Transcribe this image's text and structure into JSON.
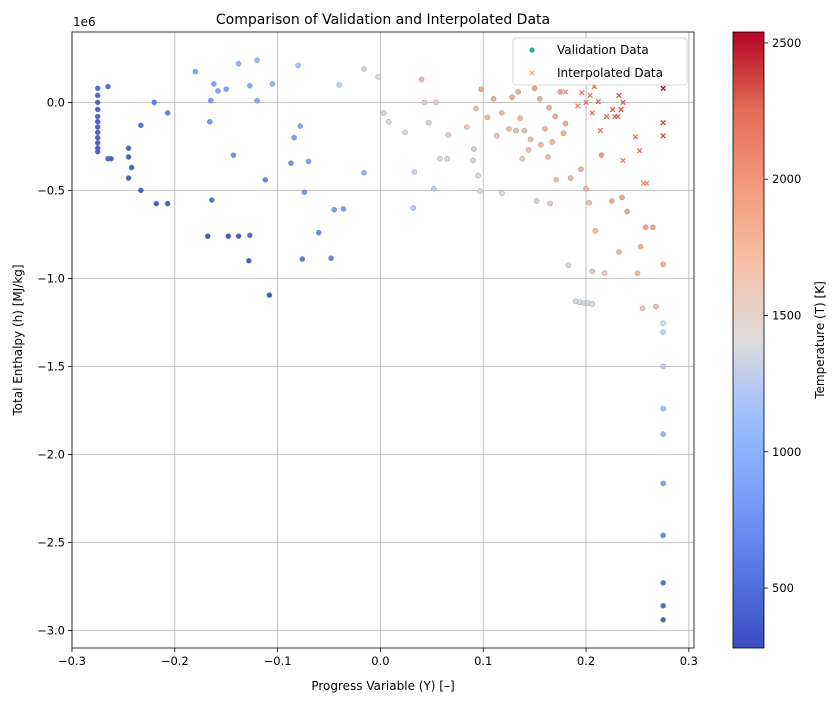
{
  "chart_data": {
    "type": "scatter",
    "title": "Comparison of Validation and Interpolated Data",
    "xlabel": "Progress Variable (Y) [–]",
    "ylabel": "Total Enthalpy (h) [MJ/kg]",
    "y_offset_label": "1e6",
    "xlim": [
      -0.3,
      0.305
    ],
    "ylim": [
      -3100000,
      400000
    ],
    "x_ticks": [
      -0.3,
      -0.2,
      -0.1,
      0.0,
      0.1,
      0.2,
      0.3
    ],
    "x_tick_labels": [
      "−0.3",
      "−0.2",
      "−0.1",
      "0.0",
      "0.1",
      "0.2",
      "0.3"
    ],
    "y_ticks": [
      0,
      -500000,
      -1000000,
      -1500000,
      -2000000,
      -2500000,
      -3000000
    ],
    "y_tick_labels": [
      "0.0",
      "−0.5",
      "−1.0",
      "−1.5",
      "−2.0",
      "−2.5",
      "−3.0"
    ],
    "grid": true,
    "legend_position": "top-right",
    "legend": [
      {
        "label": "Validation Data",
        "marker": "circle",
        "color": "#2cb37a"
      },
      {
        "label": "Interpolated Data",
        "marker": "x",
        "color": "#f4a582"
      }
    ],
    "colorbar": {
      "label": "Temperature (T) [K]",
      "range": [
        280,
        2540
      ],
      "ticks": [
        500,
        1000,
        1500,
        2000,
        2500
      ],
      "tick_labels": [
        "500",
        "1000",
        "1500",
        "2000",
        "2500"
      ],
      "colormap": "coolwarm"
    },
    "series": [
      {
        "name": "Validation Data",
        "marker": "circle",
        "points": [
          {
            "x": -0.275,
            "y": 80000,
            "t": 420
          },
          {
            "x": -0.275,
            "y": 40000,
            "t": 410
          },
          {
            "x": -0.275,
            "y": 0,
            "t": 400
          },
          {
            "x": -0.275,
            "y": -40000,
            "t": 400
          },
          {
            "x": -0.275,
            "y": -80000,
            "t": 390
          },
          {
            "x": -0.275,
            "y": -110000,
            "t": 390
          },
          {
            "x": -0.275,
            "y": -140000,
            "t": 385
          },
          {
            "x": -0.275,
            "y": -170000,
            "t": 380
          },
          {
            "x": -0.275,
            "y": -200000,
            "t": 380
          },
          {
            "x": -0.275,
            "y": -230000,
            "t": 375
          },
          {
            "x": -0.275,
            "y": -260000,
            "t": 370
          },
          {
            "x": -0.275,
            "y": -280000,
            "t": 370
          },
          {
            "x": -0.265,
            "y": 90000,
            "t": 480
          },
          {
            "x": -0.265,
            "y": -320000,
            "t": 360
          },
          {
            "x": -0.262,
            "y": -320000,
            "t": 360
          },
          {
            "x": -0.245,
            "y": -260000,
            "t": 380
          },
          {
            "x": -0.245,
            "y": -310000,
            "t": 370
          },
          {
            "x": -0.242,
            "y": -370000,
            "t": 360
          },
          {
            "x": -0.245,
            "y": -430000,
            "t": 350
          },
          {
            "x": -0.233,
            "y": -130000,
            "t": 480
          },
          {
            "x": -0.233,
            "y": -500000,
            "t": 360
          },
          {
            "x": -0.22,
            "y": 0,
            "t": 560
          },
          {
            "x": -0.218,
            "y": -575000,
            "t": 330
          },
          {
            "x": -0.207,
            "y": -575000,
            "t": 330
          },
          {
            "x": -0.207,
            "y": -60000,
            "t": 620
          },
          {
            "x": -0.18,
            "y": 175000,
            "t": 860
          },
          {
            "x": -0.168,
            "y": -760000,
            "t": 300
          },
          {
            "x": -0.166,
            "y": -110000,
            "t": 750
          },
          {
            "x": -0.165,
            "y": 10000,
            "t": 780
          },
          {
            "x": -0.162,
            "y": 105000,
            "t": 830
          },
          {
            "x": -0.164,
            "y": -555000,
            "t": 500
          },
          {
            "x": -0.158,
            "y": 65000,
            "t": 880
          },
          {
            "x": -0.15,
            "y": 75000,
            "t": 860
          },
          {
            "x": -0.148,
            "y": -760000,
            "t": 310
          },
          {
            "x": -0.143,
            "y": -300000,
            "t": 700
          },
          {
            "x": -0.138,
            "y": -760000,
            "t": 330
          },
          {
            "x": -0.138,
            "y": 220000,
            "t": 980
          },
          {
            "x": -0.128,
            "y": -900000,
            "t": 320
          },
          {
            "x": -0.127,
            "y": -755000,
            "t": 420
          },
          {
            "x": -0.127,
            "y": 95000,
            "t": 900
          },
          {
            "x": -0.12,
            "y": 240000,
            "t": 1000
          },
          {
            "x": -0.12,
            "y": 10000,
            "t": 880
          },
          {
            "x": -0.112,
            "y": -440000,
            "t": 640
          },
          {
            "x": -0.108,
            "y": -1095000,
            "t": 300
          },
          {
            "x": -0.105,
            "y": 105000,
            "t": 950
          },
          {
            "x": -0.087,
            "y": -345000,
            "t": 720
          },
          {
            "x": -0.084,
            "y": -200000,
            "t": 800
          },
          {
            "x": -0.08,
            "y": 210000,
            "t": 1150
          },
          {
            "x": -0.078,
            "y": -135000,
            "t": 870
          },
          {
            "x": -0.076,
            "y": -890000,
            "t": 520
          },
          {
            "x": -0.074,
            "y": -510000,
            "t": 740
          },
          {
            "x": -0.07,
            "y": -335000,
            "t": 820
          },
          {
            "x": -0.06,
            "y": -740000,
            "t": 640
          },
          {
            "x": -0.048,
            "y": -885000,
            "t": 600
          },
          {
            "x": -0.045,
            "y": -610000,
            "t": 760
          },
          {
            "x": -0.04,
            "y": 100000,
            "t": 1300
          },
          {
            "x": -0.036,
            "y": -605000,
            "t": 800
          },
          {
            "x": -0.016,
            "y": -400000,
            "t": 1000
          },
          {
            "x": -0.016,
            "y": 190000,
            "t": 1550
          },
          {
            "x": -0.002,
            "y": 145000,
            "t": 1470
          },
          {
            "x": 0.003,
            "y": -60000,
            "t": 1320
          },
          {
            "x": 0.008,
            "y": -110000,
            "t": 1370
          },
          {
            "x": 0.024,
            "y": -170000,
            "t": 1400
          },
          {
            "x": 0.032,
            "y": -600000,
            "t": 1180
          },
          {
            "x": 0.033,
            "y": -395000,
            "t": 1300
          },
          {
            "x": 0.04,
            "y": 130000,
            "t": 1800
          },
          {
            "x": 0.043,
            "y": 0,
            "t": 1600
          },
          {
            "x": 0.047,
            "y": -115000,
            "t": 1550
          },
          {
            "x": 0.052,
            "y": -490000,
            "t": 1250
          },
          {
            "x": 0.054,
            "y": 0,
            "t": 1600
          },
          {
            "x": 0.058,
            "y": -320000,
            "t": 1500
          },
          {
            "x": 0.065,
            "y": -320000,
            "t": 1500
          },
          {
            "x": 0.066,
            "y": -185000,
            "t": 1620
          },
          {
            "x": 0.084,
            "y": -140000,
            "t": 1700
          },
          {
            "x": 0.09,
            "y": -330000,
            "t": 1560
          },
          {
            "x": 0.091,
            "y": -265000,
            "t": 1620
          },
          {
            "x": 0.093,
            "y": -35000,
            "t": 1760
          },
          {
            "x": 0.095,
            "y": -415000,
            "t": 1500
          },
          {
            "x": 0.097,
            "y": -505000,
            "t": 1400
          },
          {
            "x": 0.098,
            "y": 75000,
            "t": 1900
          },
          {
            "x": 0.104,
            "y": -85000,
            "t": 1780
          },
          {
            "x": 0.11,
            "y": 20000,
            "t": 1850
          },
          {
            "x": 0.113,
            "y": -190000,
            "t": 1720
          },
          {
            "x": 0.118,
            "y": -515000,
            "t": 1420
          },
          {
            "x": 0.118,
            "y": -60000,
            "t": 1800
          },
          {
            "x": 0.125,
            "y": -150000,
            "t": 1760
          },
          {
            "x": 0.128,
            "y": 30000,
            "t": 1880
          },
          {
            "x": 0.132,
            "y": -160000,
            "t": 1760
          },
          {
            "x": 0.134,
            "y": 60000,
            "t": 1900
          },
          {
            "x": 0.136,
            "y": -90000,
            "t": 1800
          },
          {
            "x": 0.138,
            "y": -320000,
            "t": 1700
          },
          {
            "x": 0.14,
            "y": -160000,
            "t": 1770
          },
          {
            "x": 0.144,
            "y": -270000,
            "t": 1760
          },
          {
            "x": 0.146,
            "y": -210000,
            "t": 1790
          },
          {
            "x": 0.15,
            "y": 80000,
            "t": 1920
          },
          {
            "x": 0.152,
            "y": -560000,
            "t": 1600
          },
          {
            "x": 0.155,
            "y": 20000,
            "t": 1890
          },
          {
            "x": 0.156,
            "y": -240000,
            "t": 1800
          },
          {
            "x": 0.16,
            "y": -150000,
            "t": 1840
          },
          {
            "x": 0.163,
            "y": -310000,
            "t": 1780
          },
          {
            "x": 0.164,
            "y": -30000,
            "t": 1900
          },
          {
            "x": 0.165,
            "y": -575000,
            "t": 1640
          },
          {
            "x": 0.167,
            "y": -225000,
            "t": 1820
          },
          {
            "x": 0.17,
            "y": -80000,
            "t": 1900
          },
          {
            "x": 0.171,
            "y": -440000,
            "t": 1760
          },
          {
            "x": 0.175,
            "y": 60000,
            "t": 1950
          },
          {
            "x": 0.178,
            "y": -175000,
            "t": 1860
          },
          {
            "x": 0.18,
            "y": -120000,
            "t": 1880
          },
          {
            "x": 0.183,
            "y": -925000,
            "t": 1500
          },
          {
            "x": 0.185,
            "y": -430000,
            "t": 1800
          },
          {
            "x": 0.19,
            "y": -1130000,
            "t": 1380
          },
          {
            "x": 0.194,
            "y": -1135000,
            "t": 1380
          },
          {
            "x": 0.198,
            "y": -1140000,
            "t": 1380
          },
          {
            "x": 0.202,
            "y": -1140000,
            "t": 1380
          },
          {
            "x": 0.206,
            "y": -1145000,
            "t": 1380
          },
          {
            "x": 0.195,
            "y": -380000,
            "t": 1840
          },
          {
            "x": 0.2,
            "y": -490000,
            "t": 1800
          },
          {
            "x": 0.203,
            "y": -570000,
            "t": 1780
          },
          {
            "x": 0.206,
            "y": -960000,
            "t": 1620
          },
          {
            "x": 0.209,
            "y": -730000,
            "t": 1720
          },
          {
            "x": 0.215,
            "y": -300000,
            "t": 2000
          },
          {
            "x": 0.218,
            "y": -970000,
            "t": 1640
          },
          {
            "x": 0.225,
            "y": -560000,
            "t": 1880
          },
          {
            "x": 0.232,
            "y": -850000,
            "t": 1760
          },
          {
            "x": 0.235,
            "y": -540000,
            "t": 1960
          },
          {
            "x": 0.24,
            "y": -620000,
            "t": 1920
          },
          {
            "x": 0.25,
            "y": -970000,
            "t": 1780
          },
          {
            "x": 0.253,
            "y": -820000,
            "t": 1860
          },
          {
            "x": 0.258,
            "y": -710000,
            "t": 1920
          },
          {
            "x": 0.255,
            "y": -1170000,
            "t": 1700
          },
          {
            "x": 0.265,
            "y": -710000,
            "t": 1940
          },
          {
            "x": 0.268,
            "y": -1160000,
            "t": 1720
          },
          {
            "x": 0.275,
            "y": -920000,
            "t": 1880
          },
          {
            "x": 0.275,
            "y": -1255000,
            "t": 1380
          },
          {
            "x": 0.275,
            "y": -1305000,
            "t": 1300
          },
          {
            "x": 0.275,
            "y": -1500000,
            "t": 1260
          },
          {
            "x": 0.275,
            "y": -1740000,
            "t": 1100
          },
          {
            "x": 0.275,
            "y": -1885000,
            "t": 1020
          },
          {
            "x": 0.275,
            "y": -2165000,
            "t": 820
          },
          {
            "x": 0.275,
            "y": -2460000,
            "t": 620
          },
          {
            "x": 0.275,
            "y": -2730000,
            "t": 480
          },
          {
            "x": 0.275,
            "y": -2860000,
            "t": 420
          },
          {
            "x": 0.275,
            "y": -2940000,
            "t": 390
          }
        ]
      },
      {
        "name": "Interpolated Data",
        "marker": "x",
        "points": [
          {
            "x": 0.18,
            "y": 60000,
            "t": 2050
          },
          {
            "x": 0.192,
            "y": -20000,
            "t": 2120
          },
          {
            "x": 0.196,
            "y": 55000,
            "t": 2150
          },
          {
            "x": 0.2,
            "y": 0,
            "t": 2180
          },
          {
            "x": 0.204,
            "y": 40000,
            "t": 2200
          },
          {
            "x": 0.206,
            "y": -60000,
            "t": 2230
          },
          {
            "x": 0.208,
            "y": 90000,
            "t": 2260
          },
          {
            "x": 0.212,
            "y": 5000,
            "t": 2240
          },
          {
            "x": 0.214,
            "y": -160000,
            "t": 2180
          },
          {
            "x": 0.22,
            "y": -80000,
            "t": 2220
          },
          {
            "x": 0.226,
            "y": -40000,
            "t": 2280
          },
          {
            "x": 0.228,
            "y": -80000,
            "t": 2290
          },
          {
            "x": 0.231,
            "y": -80000,
            "t": 2300
          },
          {
            "x": 0.232,
            "y": 40000,
            "t": 2350
          },
          {
            "x": 0.234,
            "y": -40000,
            "t": 2310
          },
          {
            "x": 0.236,
            "y": 0,
            "t": 2320
          },
          {
            "x": 0.236,
            "y": -330000,
            "t": 2150
          },
          {
            "x": 0.248,
            "y": -195000,
            "t": 2240
          },
          {
            "x": 0.252,
            "y": -275000,
            "t": 2200
          },
          {
            "x": 0.256,
            "y": -460000,
            "t": 2100
          },
          {
            "x": 0.259,
            "y": -460000,
            "t": 2100
          },
          {
            "x": 0.275,
            "y": 80000,
            "t": 2520
          },
          {
            "x": 0.275,
            "y": -115000,
            "t": 2400
          },
          {
            "x": 0.275,
            "y": -190000,
            "t": 2350
          }
        ]
      }
    ]
  }
}
